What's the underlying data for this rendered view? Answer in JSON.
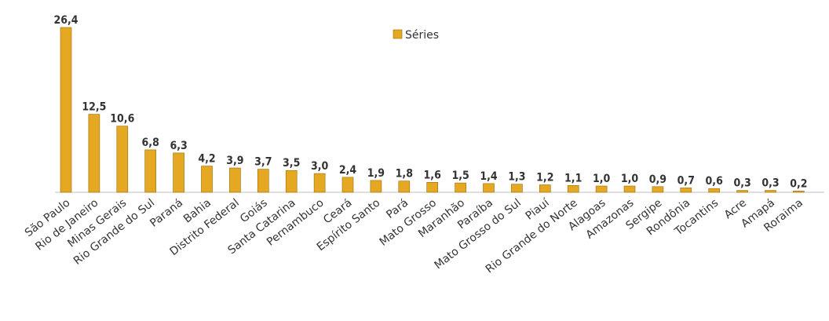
{
  "chart_data": {
    "type": "bar",
    "categories": [
      "São Paulo",
      "Rio de Janeiro",
      "Minas Gerais",
      "Rio Grande do Sul",
      "Paraná",
      "Bahia",
      "Distrito Federal",
      "Goiás",
      "Santa Catarina",
      "Pernambuco",
      "Ceará",
      "Espírito Santo",
      "Pará",
      "Mato Grosso",
      "Maranhão",
      "Paraíba",
      "Mato Grosso do Sul",
      "Piauí",
      "Rio Grande do Norte",
      "Alagoas",
      "Amazonas",
      "Sergipe",
      "Rondônia",
      "Tocantins",
      "Acre",
      "Amapá",
      "Roraima"
    ],
    "series": [
      {
        "name": "Séries",
        "values": [
          26.4,
          12.5,
          10.6,
          6.8,
          6.3,
          4.2,
          3.9,
          3.7,
          3.5,
          3.0,
          2.4,
          1.9,
          1.8,
          1.6,
          1.5,
          1.4,
          1.3,
          1.2,
          1.1,
          1.0,
          1.0,
          0.9,
          0.7,
          0.6,
          0.3,
          0.3,
          0.2
        ],
        "labels": [
          "26,4",
          "12,5",
          "10,6",
          "6,8",
          "6,3",
          "4,2",
          "3,9",
          "3,7",
          "3,5",
          "3,0",
          "2,4",
          "1,9",
          "1,8",
          "1,6",
          "1,5",
          "1,4",
          "1,3",
          "1,2",
          "1,1",
          "1,0",
          "1,0",
          "0,9",
          "0,7",
          "0,6",
          "0,3",
          "0,3",
          "0,2"
        ]
      }
    ],
    "ylim": [
      0,
      26.4
    ],
    "legend_position": "top-center",
    "grid": false,
    "colors": {
      "bar": "#E5A823",
      "bar_edge": "#9A6A00",
      "text": "#333333"
    }
  }
}
